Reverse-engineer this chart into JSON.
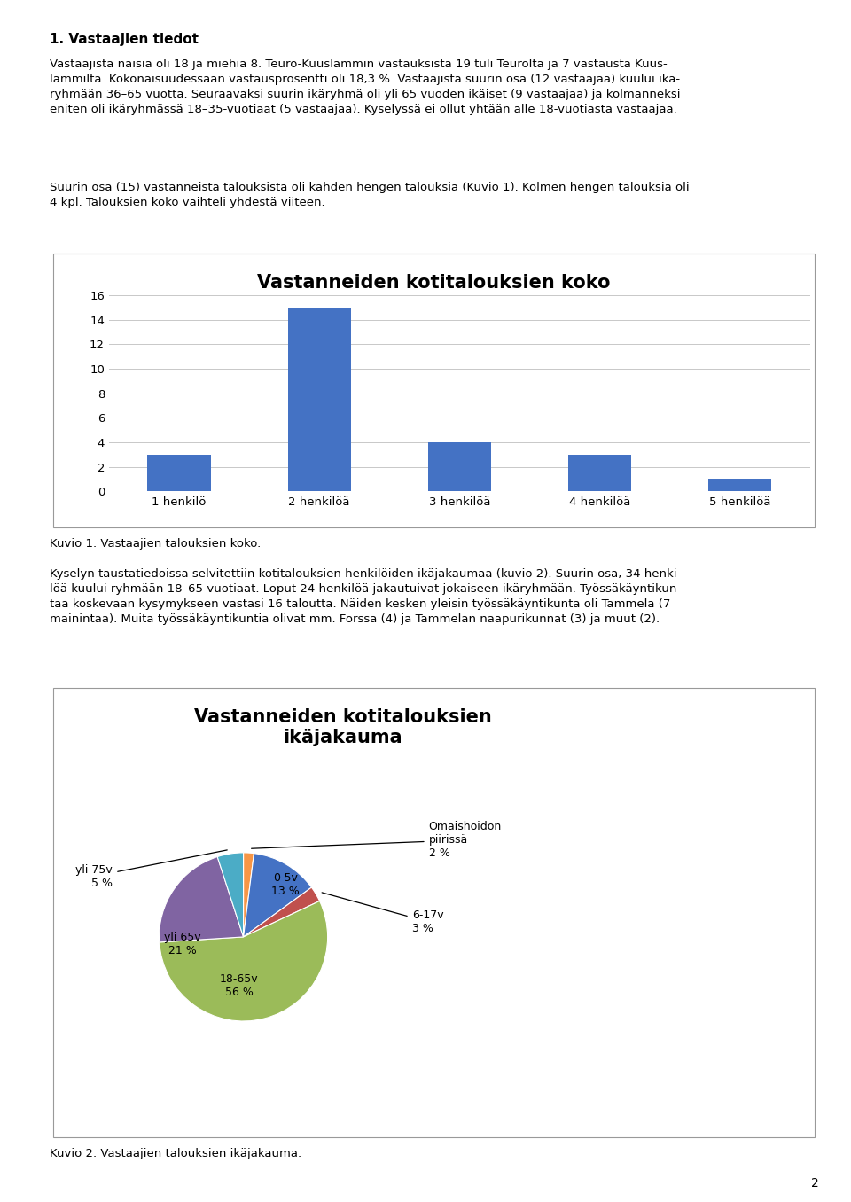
{
  "page_title": "1. Vastaajien tiedot",
  "paragraph1": "Vastaajista naisia oli 18 ja miehiä 8. Teuro-Kuuslammin vastauksista 19 tuli Teurolta ja 7 vastausta Kuus-\nlammilta. Kokonaisuudessaan vastausprosentti oli 18,3 %. Vastaajista suurin osa (12 vastaajaa) kuului ikä-\nryhmään 36–65 vuotta. Seuraavaksi suurin ikäryhmä oli yli 65 vuoden ikäiset (9 vastaajaa) ja kolmanneksi\neniten oli ikäryhmässä 18–35-vuotiaat (5 vastaajaa). Kyselyssä ei ollut yhtään alle 18-vuotiasta vastaajaa.",
  "paragraph2": "Suurin osa (15) vastanneista talouksista oli kahden hengen talouksia (Kuvio 1). Kolmen hengen talouksia oli\n4 kpl. Talouksien koko vaihteli yhdestä viiteen.",
  "bar_title": "Vastanneiden kotitalouksien koko",
  "bar_categories": [
    "1 henkilö",
    "2 henkilöä",
    "3 henkilöä",
    "4 henkilöä",
    "5 henkilöä"
  ],
  "bar_values": [
    3,
    15,
    4,
    3,
    1
  ],
  "bar_color": "#4472C4",
  "bar_ylim": [
    0,
    16
  ],
  "bar_yticks": [
    0,
    2,
    4,
    6,
    8,
    10,
    12,
    14,
    16
  ],
  "bar_caption": "Kuvio 1. Vastaajien talouksien koko.",
  "paragraph3": "Kyselyn taustatiedoissa selvitettiin kotitalouksien henkilöiden ikäjakaumaa (kuvio 2). Suurin osa, 34 henki-\nlöä kuului ryhmään 18–65-vuotiaat. Loput 24 henkilöä jakautuivat jokaiseen ikäryhmään. Työssäkäyntikun-\ntaa koskevaan kysymykseen vastasi 16 taloutta. Näiden kesken yleisin työssäkäyntikunta oli Tammela (7\nmainintaa). Muita työssäkäyntikuntia olivat mm. Forssa (4) ja Tammelan naapurikunnat (3) ja muut (2).",
  "pie_title": "Vastanneiden kotitalouksien\nikäjakauma",
  "pie_values": [
    2,
    13,
    3,
    56,
    21,
    5
  ],
  "pie_colors": [
    "#F79646",
    "#4472C4",
    "#C0504D",
    "#9BBB59",
    "#8064A2",
    "#4BACC6"
  ],
  "pie_caption": "Kuvio 2. Vastaajien talouksien ikäjakauma.",
  "page_number": "2",
  "background_color": "#ffffff",
  "text_color": "#000000"
}
